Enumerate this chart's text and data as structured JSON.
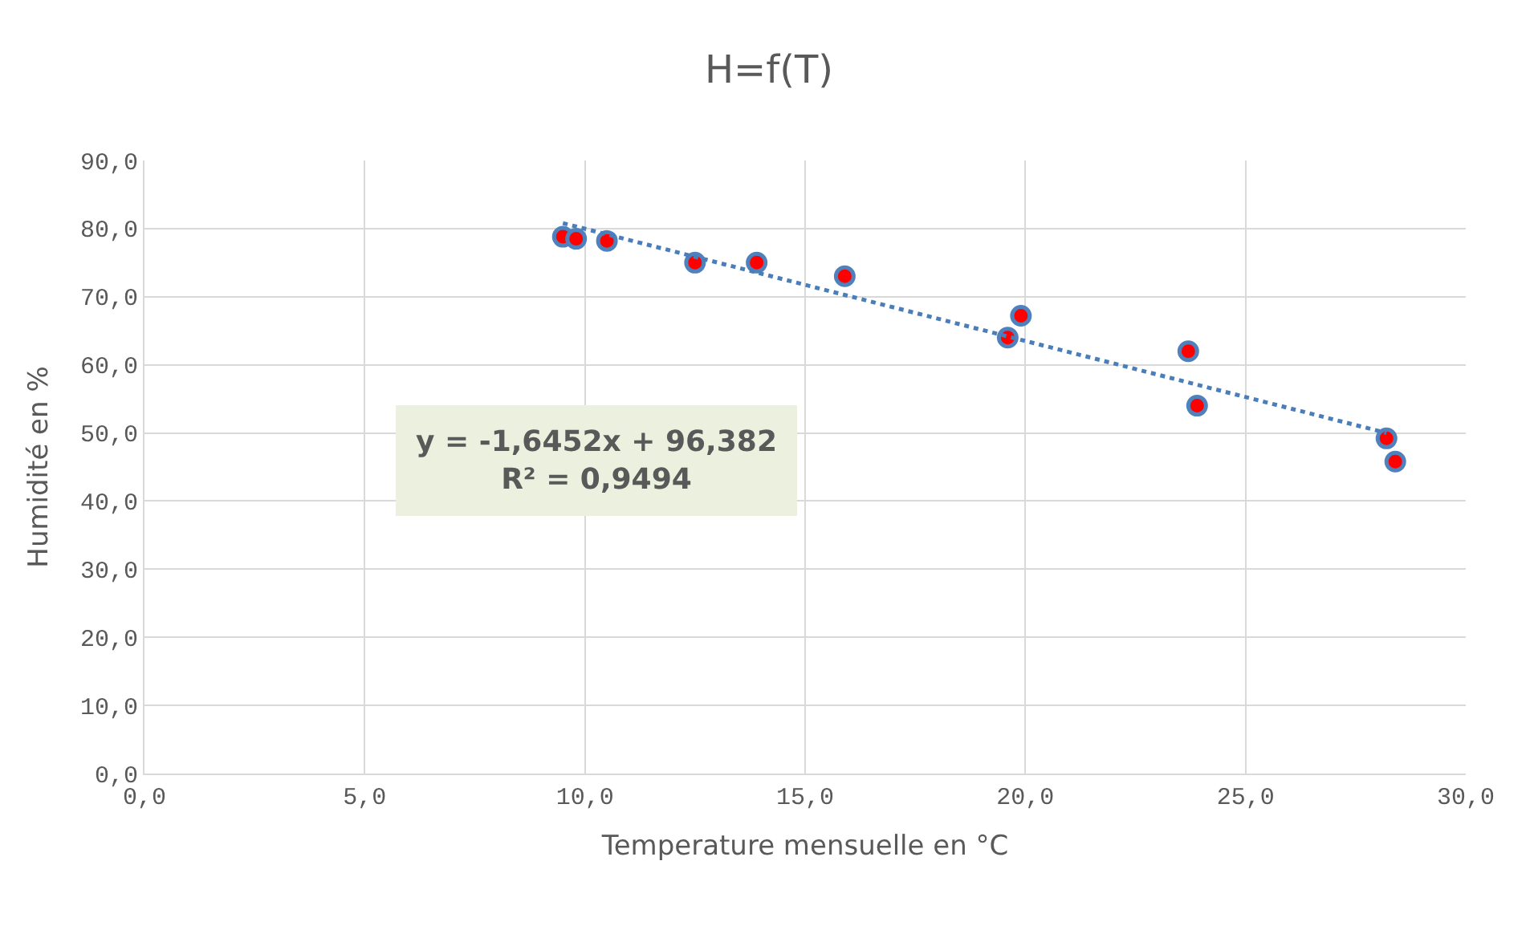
{
  "chart_data": {
    "type": "scatter",
    "title": "H=f(T)",
    "xlabel": "Temperature mensuelle en °C",
    "ylabel": "Humidité en %",
    "series": [
      {
        "color": "#ff0000",
        "marker": "circle",
        "x": [
          9.5,
          9.8,
          10.5,
          12.5,
          13.9,
          15.9,
          19.6,
          19.9,
          23.7,
          23.9,
          28.2,
          28.4
        ],
        "values": [
          78.8,
          78.5,
          78.2,
          75.0,
          75.0,
          73.0,
          64.0,
          67.2,
          62.0,
          54.0,
          49.2,
          45.8
        ]
      },
      {
        "type": "line",
        "color": "#4a7ebb",
        "line_style": "dotted",
        "marker": "none",
        "x": [
          9.5,
          28.2
        ],
        "values": [
          80.8,
          50.0
        ]
      }
    ],
    "annotations": [
      "y = -1,6452x + 96,382\nR² = 0,9494"
    ],
    "xlim": [
      0,
      30
    ],
    "ylim": [
      0,
      90
    ],
    "xticks": [
      {
        "value": 0,
        "label": "0,0"
      },
      {
        "value": 5,
        "label": "5,0"
      },
      {
        "value": 10,
        "label": "10,0"
      },
      {
        "value": 15,
        "label": "15,0"
      },
      {
        "value": 20,
        "label": "20,0"
      },
      {
        "value": 25,
        "label": "25,0"
      },
      {
        "value": 30,
        "label": "30,0"
      }
    ],
    "yticks": [
      {
        "value": 0,
        "label": "0,0"
      },
      {
        "value": 10,
        "label": "10,0"
      },
      {
        "value": 20,
        "label": "20,0"
      },
      {
        "value": 30,
        "label": "30,0"
      },
      {
        "value": 40,
        "label": "40,0"
      },
      {
        "value": 50,
        "label": "50,0"
      },
      {
        "value": 60,
        "label": "60,0"
      },
      {
        "value": 70,
        "label": "70,0"
      },
      {
        "value": 80,
        "label": "80,0"
      },
      {
        "value": 90,
        "label": "90,0"
      }
    ],
    "grid": true,
    "legend": false
  }
}
